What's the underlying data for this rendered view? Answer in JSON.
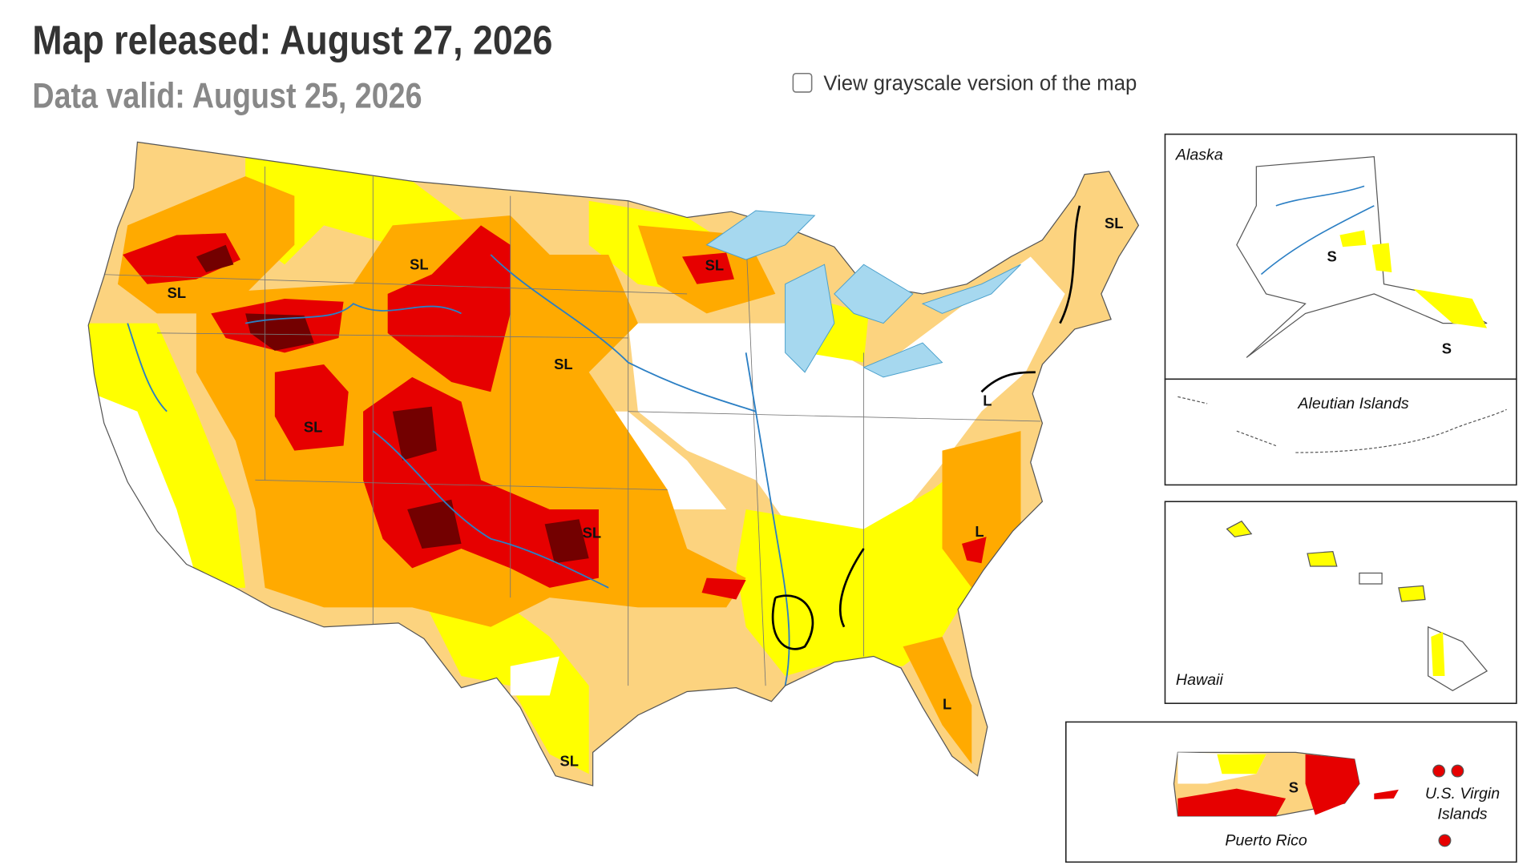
{
  "header": {
    "title": "Map released: August 27, 2026",
    "subtitle": "Data valid: August 25, 2026"
  },
  "controls": {
    "grayscale_toggle": "View grayscale version of the map"
  },
  "map": {
    "labels": [
      "SL",
      "SL",
      "SL",
      "SL",
      "SL",
      "SL",
      "L",
      "SL",
      "L",
      "L",
      "SL"
    ]
  },
  "insets": {
    "alaska": {
      "title": "Alaska",
      "labels": [
        "S",
        "S"
      ]
    },
    "aleutian": {
      "title": "Aleutian Islands"
    },
    "hawaii": {
      "title": "Hawaii"
    },
    "puerto_rico": {
      "title": "Puerto Rico",
      "labels": [
        "S"
      ]
    },
    "virgin_islands": {
      "title": [
        "U.S. Virgin",
        "Islands"
      ]
    }
  }
}
